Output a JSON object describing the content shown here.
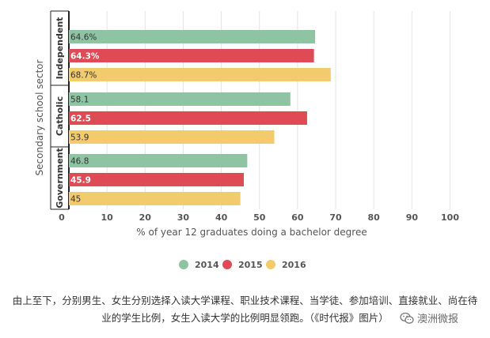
{
  "chart_data": {
    "type": "bar",
    "orientation": "horizontal",
    "ylabel": "Secondary school sector",
    "xlabel": "% of year 12 graduates doing a bachelor degree",
    "xlim": [
      0,
      100
    ],
    "xticks": [
      0,
      10,
      20,
      30,
      40,
      50,
      60,
      70,
      80,
      90,
      100
    ],
    "grid": "vertical",
    "legend_position": "bottom",
    "categories": [
      "Independent",
      "Catholic",
      "Government"
    ],
    "series": [
      {
        "name": "2014",
        "color": "#8ec4a2",
        "values": [
          64.6,
          58.1,
          46.8
        ],
        "labels": [
          "64.6%",
          "58.1",
          "46.8"
        ]
      },
      {
        "name": "2015",
        "color": "#de4b55",
        "values": [
          64.3,
          62.5,
          45.9
        ],
        "labels": [
          "64.3%",
          "62.5",
          "45.9"
        ]
      },
      {
        "name": "2016",
        "color": "#f1cb6c",
        "values": [
          68.7,
          53.9,
          45
        ],
        "labels": [
          "68.7%",
          "53.9",
          "45"
        ]
      }
    ]
  },
  "caption": "由上至下，分别男生、女生分别选择入读大学课程、职业技术课程、当学徒、参加培训、直接就业、尚在待业的学生比例，女生入读大学的比例明显领跑。（《时代报》图片）",
  "watermark": {
    "text": "澳洲微报",
    "icon": "wechat-icon"
  }
}
